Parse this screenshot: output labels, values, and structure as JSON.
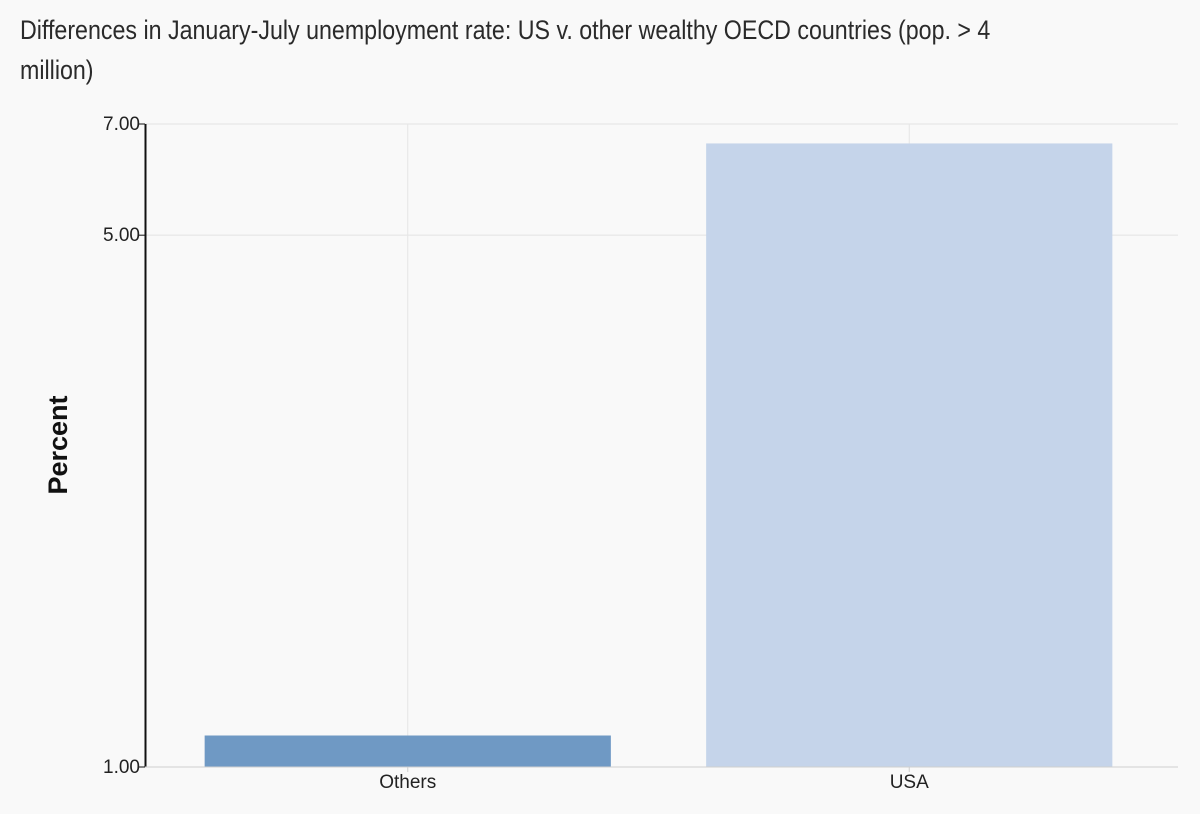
{
  "chart_data": {
    "type": "bar",
    "title": "Differences in January-July unemployment rate: US v. other wealthy OECD countries (pop. > 4 million)",
    "xlabel": "",
    "ylabel": "Percent",
    "categories": [
      "Others",
      "USA"
    ],
    "values": [
      1.1,
      6.6
    ],
    "colors": [
      "#6f99c4",
      "#c5d4ea"
    ],
    "y_scale": "log",
    "ylim": [
      1,
      7
    ],
    "y_ticks": [
      1,
      5,
      7
    ],
    "y_tick_labels": [
      "1.00",
      "5.00",
      "7.00"
    ],
    "grid": true,
    "legend": "none"
  }
}
